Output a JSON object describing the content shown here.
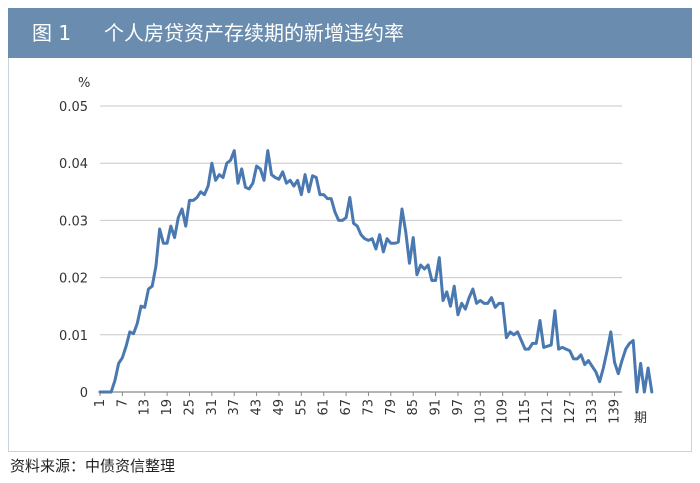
{
  "figure": {
    "label": "图 1",
    "title": "个人房贷资产存续期的新增违约率",
    "source": "资料来源：中债资信整理",
    "accent_color": "#6a8cae"
  },
  "chart_data": {
    "type": "line",
    "title": "个人房贷资产存续期的新增违约率",
    "ylabel": "%",
    "xlabel": "期",
    "ylim": [
      0,
      0.05
    ],
    "xlim": [
      1,
      141
    ],
    "yticks": [
      "0",
      "0.01",
      "0.02",
      "0.03",
      "0.04",
      "0.05"
    ],
    "xticks": [
      "1",
      "7",
      "13",
      "19",
      "25",
      "31",
      "37",
      "43",
      "49",
      "55",
      "61",
      "67",
      "73",
      "79",
      "85",
      "91",
      "97",
      "103",
      "109",
      "115",
      "121",
      "127",
      "133",
      "139"
    ],
    "grid": "horizontal",
    "line_color": "#4a78b0",
    "y": [
      0,
      0,
      0,
      0,
      0.002,
      0.005,
      0.006,
      0.008,
      0.0105,
      0.0102,
      0.012,
      0.015,
      0.0148,
      0.018,
      0.0185,
      0.022,
      0.0285,
      0.026,
      0.026,
      0.029,
      0.027,
      0.0305,
      0.032,
      0.029,
      0.0335,
      0.0335,
      0.034,
      0.035,
      0.0345,
      0.036,
      0.04,
      0.037,
      0.038,
      0.0375,
      0.04,
      0.0405,
      0.0422,
      0.0365,
      0.039,
      0.0358,
      0.0355,
      0.0365,
      0.0395,
      0.039,
      0.037,
      0.0422,
      0.038,
      0.0375,
      0.0372,
      0.0385,
      0.0365,
      0.037,
      0.036,
      0.037,
      0.0345,
      0.038,
      0.035,
      0.0378,
      0.0375,
      0.0345,
      0.0345,
      0.0338,
      0.0338,
      0.0315,
      0.03,
      0.03,
      0.0305,
      0.034,
      0.0295,
      0.029,
      0.0275,
      0.0268,
      0.0265,
      0.0268,
      0.025,
      0.0275,
      0.0245,
      0.0268,
      0.026,
      0.026,
      0.0262,
      0.032,
      0.028,
      0.0225,
      0.027,
      0.0205,
      0.0222,
      0.0215,
      0.0222,
      0.0195,
      0.0195,
      0.0235,
      0.016,
      0.0175,
      0.015,
      0.0185,
      0.0135,
      0.0155,
      0.0145,
      0.0165,
      0.018,
      0.0155,
      0.016,
      0.0155,
      0.0155,
      0.0165,
      0.0148,
      0.0155,
      0.0155,
      0.0095,
      0.0105,
      0.01,
      0.0105,
      0.009,
      0.0075,
      0.0075,
      0.0085,
      0.0085,
      0.0125,
      0.0078,
      0.008,
      0.0082,
      0.0142,
      0.0075,
      0.0078,
      0.0075,
      0.0072,
      0.0058,
      0.0058,
      0.0065,
      0.0048,
      0.0055,
      0.0045,
      0.0035,
      0.0018,
      0.0042,
      0.0072,
      0.0105,
      0.0052,
      0.0032,
      0.0055,
      0.0075,
      0.0085,
      0.009,
      0,
      0.005,
      0,
      0.0042,
      0
    ]
  }
}
